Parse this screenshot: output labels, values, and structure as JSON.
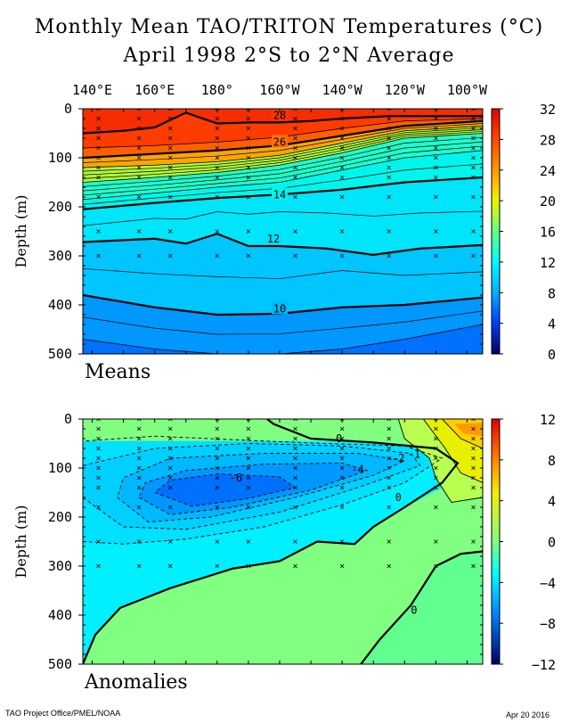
{
  "title_line1": "Monthly Mean TAO/TRITON Temperatures (°C)",
  "title_line2": "April 1998    2°S to 2°N Average",
  "footer_left": "TAO Project Office/PMEL/NOAA",
  "footer_right": "Apr 20 2016",
  "chart_data": [
    {
      "type": "heatmap",
      "panel": "Means",
      "panel_label": "Means",
      "x_ticks": [
        "140°E",
        "160°E",
        "180°",
        "160°W",
        "140°W",
        "120°W",
        "100°W"
      ],
      "x_values_lon_east": [
        140,
        160,
        180,
        200,
        220,
        240,
        260
      ],
      "xlim_lon_east": [
        137,
        265
      ],
      "ylabel": "Depth (m)",
      "y_ticks": [
        0,
        100,
        200,
        300,
        400,
        500
      ],
      "ylim": [
        0,
        500
      ],
      "colorbar_ticks": [
        32,
        28,
        24,
        20,
        16,
        12,
        8,
        4,
        0
      ],
      "colorbar_range": [
        0,
        32
      ],
      "contour_interval": 1,
      "bold_contours": [
        28,
        26,
        14,
        12,
        10
      ],
      "contour_labels": [
        "28",
        "26",
        "14",
        "12",
        "10"
      ],
      "isotherms": [
        {
          "t": 28,
          "lon": [
            137,
            150,
            160,
            170,
            180,
            190,
            200,
            210,
            220,
            235,
            250,
            265
          ],
          "depth": [
            50,
            45,
            38,
            8,
            30,
            28,
            28,
            25,
            20,
            15,
            15,
            15
          ]
        },
        {
          "t": 27,
          "lon": [
            137,
            160,
            180,
            200,
            220,
            240,
            265
          ],
          "depth": [
            80,
            75,
            68,
            58,
            40,
            25,
            20
          ]
        },
        {
          "t": 26,
          "lon": [
            137,
            160,
            180,
            200,
            220,
            240,
            265
          ],
          "depth": [
            100,
            92,
            85,
            75,
            55,
            35,
            25
          ]
        },
        {
          "t": 24,
          "lon": [
            137,
            160,
            180,
            200,
            220,
            240,
            265
          ],
          "depth": [
            120,
            115,
            108,
            95,
            70,
            45,
            35
          ]
        },
        {
          "t": 20,
          "lon": [
            137,
            160,
            180,
            200,
            220,
            240,
            265
          ],
          "depth": [
            150,
            140,
            130,
            115,
            90,
            60,
            50
          ]
        },
        {
          "t": 16,
          "lon": [
            137,
            160,
            180,
            200,
            220,
            240,
            265
          ],
          "depth": [
            185,
            172,
            160,
            150,
            125,
            100,
            85
          ]
        },
        {
          "t": 14,
          "lon": [
            137,
            160,
            180,
            200,
            220,
            240,
            265
          ],
          "depth": [
            205,
            192,
            182,
            175,
            165,
            150,
            140
          ]
        },
        {
          "t": 12,
          "lon": [
            137,
            150,
            160,
            170,
            180,
            190,
            200,
            215,
            230,
            245,
            265
          ],
          "depth": [
            272,
            268,
            265,
            275,
            255,
            280,
            280,
            285,
            298,
            285,
            278
          ]
        },
        {
          "t": 10,
          "lon": [
            137,
            160,
            180,
            200,
            220,
            240,
            265
          ],
          "depth": [
            380,
            405,
            420,
            418,
            405,
            400,
            385
          ]
        },
        {
          "t": 8,
          "lon": [
            137,
            160,
            180,
            200,
            220,
            240,
            265
          ],
          "depth": [
            470,
            490,
            500,
            500,
            490,
            470,
            440
          ]
        }
      ]
    },
    {
      "type": "heatmap",
      "panel": "Anomalies",
      "panel_label": "Anomalies",
      "x_ticks": [
        "140°E",
        "160°E",
        "180°",
        "160°W",
        "140°W",
        "120°W",
        "100°W"
      ],
      "x_values_lon_east": [
        140,
        160,
        180,
        200,
        220,
        240,
        260
      ],
      "xlim_lon_east": [
        137,
        265
      ],
      "ylabel": "Depth (m)",
      "y_ticks": [
        0,
        100,
        200,
        300,
        400,
        500
      ],
      "ylim": [
        0,
        500
      ],
      "colorbar_ticks": [
        12,
        8,
        4,
        0,
        -4,
        -8,
        -12
      ],
      "colorbar_range": [
        -12,
        12
      ],
      "contour_interval": 1,
      "contour_labels": [
        "-6",
        "-4",
        "-2",
        "-1",
        "0",
        "0",
        "0"
      ],
      "features": {
        "cold_core_min": -6,
        "cold_core_lon": 172,
        "cold_core_depth": 140,
        "warm_surface_max": 8,
        "warm_surface_lon": 262,
        "warm_surface_depth": 20
      }
    }
  ]
}
